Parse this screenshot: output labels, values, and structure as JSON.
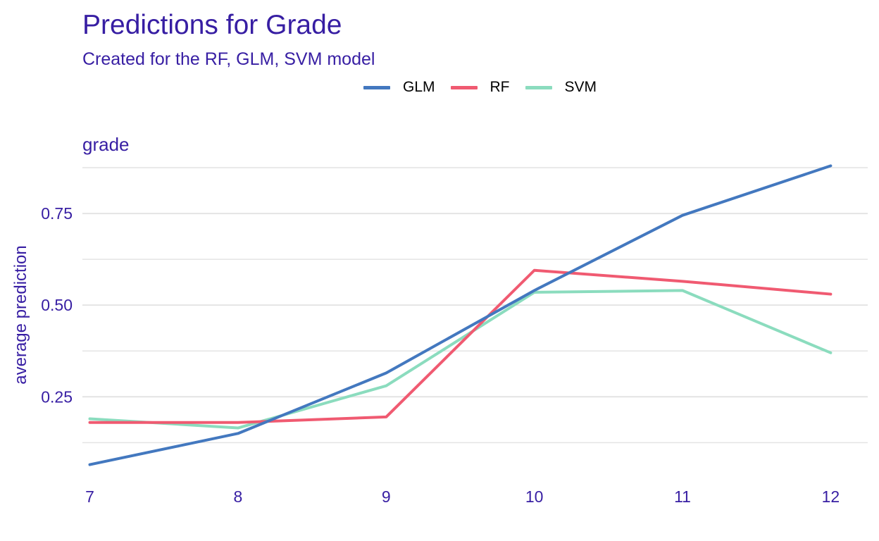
{
  "chart_data": {
    "type": "line",
    "title": "Predictions for Grade",
    "subtitle": "Created for the RF, GLM, SVM model",
    "panel_label": "grade",
    "xlabel": "",
    "ylabel": "average prediction",
    "x": [
      7,
      8,
      9,
      10,
      11,
      12
    ],
    "x_ticks": [
      "7",
      "8",
      "9",
      "10",
      "11",
      "12"
    ],
    "y_ticks": [
      0.25,
      0.5,
      0.75
    ],
    "y_tick_labels": [
      "0.25",
      "0.50",
      "0.75"
    ],
    "ylim": [
      0.02,
      0.9
    ],
    "xlim": [
      6.95,
      12.25
    ],
    "grid": "horizontal",
    "legend_position": "top",
    "series": [
      {
        "name": "GLM",
        "color": "#4378bf",
        "values": [
          0.065,
          0.15,
          0.315,
          0.54,
          0.745,
          0.88
        ]
      },
      {
        "name": "RF",
        "color": "#f05a71",
        "values": [
          0.18,
          0.18,
          0.195,
          0.595,
          0.565,
          0.53
        ]
      },
      {
        "name": "SVM",
        "color": "#8bdcbe",
        "values": [
          0.19,
          0.165,
          0.28,
          0.535,
          0.54,
          0.37
        ]
      }
    ]
  }
}
